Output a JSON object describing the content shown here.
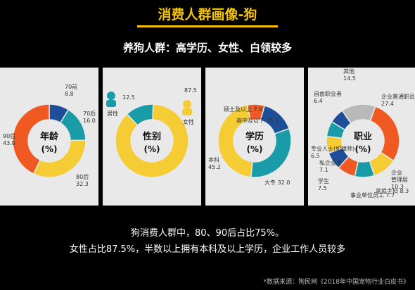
{
  "header": {
    "title": "消费人群画像-狗",
    "subtitle": "养狗人群：高学历、女性、白领较多"
  },
  "colors": {
    "accent": "#f5c400",
    "orange": "#f05a22",
    "yellow": "#f5cc33",
    "teal": "#1a9ca8",
    "blue": "#1f4e99",
    "gray": "#b9b9b9",
    "panel_bg": "#e9e9e9"
  },
  "chart_data": [
    {
      "type": "pie",
      "center_label_1": "年龄",
      "center_label_2": "(%)",
      "slices": [
        {
          "name": "70前",
          "value": 8.8,
          "color": "#1f4e99",
          "label": "70前\n8.8"
        },
        {
          "name": "70后",
          "value": 16.0,
          "color": "#1a9ca8",
          "label": "70后\n16.0"
        },
        {
          "name": "80后",
          "value": 32.3,
          "color": "#f5cc33",
          "label": "80后\n32.3"
        },
        {
          "name": "90后",
          "value": 43.0,
          "color": "#f05a22",
          "label": "90后\n43.0"
        }
      ]
    },
    {
      "type": "pie",
      "center_label_1": "性别",
      "center_label_2": "(%)",
      "slices": [
        {
          "name": "男性",
          "value": 12.5,
          "color": "#1a9ca8",
          "label": "12.5"
        },
        {
          "name": "女性",
          "value": 87.5,
          "color": "#f5cc33",
          "label": "87.5"
        }
      ],
      "legend": [
        "男性",
        "女性"
      ]
    },
    {
      "type": "pie",
      "center_label_1": "学历",
      "center_label_2": "(%)",
      "slices": [
        {
          "name": "硕士及以上",
          "value": 7.6,
          "color": "#f05a22",
          "label": "硕士及以上 7.6"
        },
        {
          "name": "高中及以下",
          "value": 15.2,
          "color": "#1f4e99",
          "label": "高中及以下 15.2"
        },
        {
          "name": "大专",
          "value": 32.0,
          "color": "#1a9ca8",
          "label": "大专 32.0"
        },
        {
          "name": "本科",
          "value": 45.2,
          "color": "#f5cc33",
          "label": "本科\n45.2"
        }
      ]
    },
    {
      "type": "pie",
      "center_label_1": "职业",
      "center_label_2": "(%)",
      "slices": [
        {
          "name": "企业普通职员",
          "value": 27.4,
          "color": "#f05a22",
          "label": "企业普通职员\n27.4"
        },
        {
          "name": "企业管理层",
          "value": 10.3,
          "color": "#f5cc33",
          "label": "企业\n管理层\n10.3"
        },
        {
          "name": "家庭主妇",
          "value": 8.3,
          "color": "#1a9ca8",
          "label": "家庭主妇 8.3"
        },
        {
          "name": "事业单位员工",
          "value": 7.7,
          "color": "#f05a22",
          "label": "事业单位员工 7.7"
        },
        {
          "name": "学生",
          "value": 7.5,
          "color": "#1f4e99",
          "label": "学生\n7.5"
        },
        {
          "name": "私企业主",
          "value": 7.1,
          "color": "#f5cc33",
          "label": "私企业主\n7.1"
        },
        {
          "name": "专业人士",
          "value": 6.5,
          "color": "#1a9ca8",
          "label": "专业人士(如律师)\n6.5"
        },
        {
          "name": "自由职业者",
          "value": 6.4,
          "color": "#1f4e99",
          "label": "自由职业者\n6.4"
        },
        {
          "name": "其他",
          "value": 14.5,
          "color": "#b9b9b9",
          "label": "其他\n14.5"
        }
      ]
    }
  ],
  "summary": {
    "line1": "狗消费人群中，80、90后占比75%。",
    "line2": "女性占比87.5%，半数以上拥有本科及以上学历，企业工作人员较多"
  },
  "source": "*数据来源：狗民网《2018年中国宠物行业白皮书》"
}
